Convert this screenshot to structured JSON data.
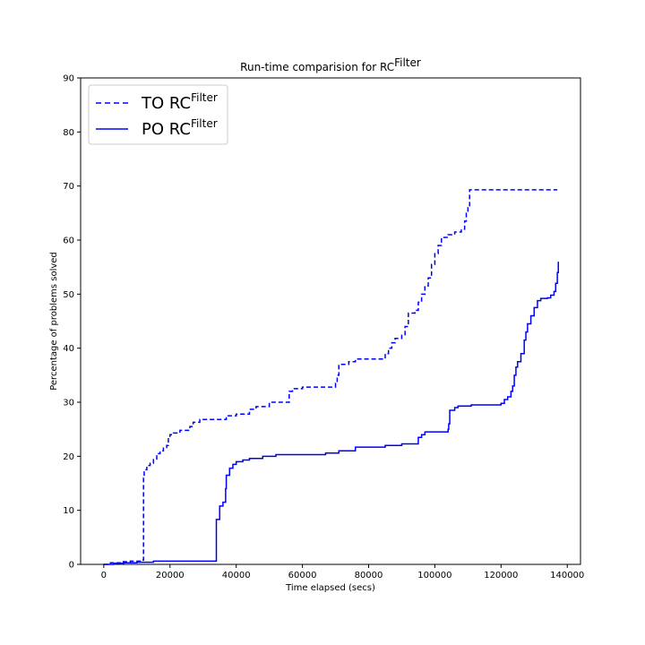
{
  "chart_data": {
    "type": "line",
    "title": "Run-time comparision for RC",
    "title_superscript": "Filter",
    "xlabel": "Time elapsed (secs)",
    "ylabel": "Percentage of problems solved",
    "xlim": [
      -7000,
      144000
    ],
    "ylim": [
      0,
      90
    ],
    "xticks": [
      0,
      20000,
      40000,
      60000,
      80000,
      100000,
      120000,
      140000
    ],
    "yticks": [
      0,
      10,
      20,
      30,
      40,
      50,
      60,
      70,
      80,
      90
    ],
    "grid": false,
    "legend_position": "top-left",
    "series": [
      {
        "name": "TO RC",
        "name_superscript": "Filter",
        "style": "dashed",
        "color": "#0000ff",
        "step": true,
        "points": [
          [
            0,
            0
          ],
          [
            2000,
            0.3
          ],
          [
            5000,
            0.5
          ],
          [
            8000,
            0.6
          ],
          [
            11900,
            0.8
          ],
          [
            12000,
            16
          ],
          [
            12200,
            17.5
          ],
          [
            13000,
            18.3
          ],
          [
            14000,
            18.7
          ],
          [
            15000,
            19.5
          ],
          [
            16000,
            20.5
          ],
          [
            17000,
            21
          ],
          [
            18000,
            21.5
          ],
          [
            19000,
            22
          ],
          [
            19500,
            23.5
          ],
          [
            20000,
            24
          ],
          [
            21000,
            24.3
          ],
          [
            23000,
            24.8
          ],
          [
            26000,
            25.5
          ],
          [
            27000,
            26.3
          ],
          [
            29000,
            26.8
          ],
          [
            37000,
            27.5
          ],
          [
            40000,
            27.8
          ],
          [
            44000,
            28.7
          ],
          [
            46000,
            29.2
          ],
          [
            50000,
            30
          ],
          [
            56000,
            32
          ],
          [
            57000,
            32.5
          ],
          [
            60000,
            32.8
          ],
          [
            70000,
            33.5
          ],
          [
            70500,
            35
          ],
          [
            71000,
            37
          ],
          [
            74000,
            37.5
          ],
          [
            76000,
            38
          ],
          [
            85000,
            39
          ],
          [
            86000,
            40
          ],
          [
            87000,
            41
          ],
          [
            88000,
            41.8
          ],
          [
            90000,
            42.5
          ],
          [
            91000,
            44
          ],
          [
            92000,
            46.5
          ],
          [
            94000,
            47
          ],
          [
            95000,
            48.5
          ],
          [
            96000,
            50
          ],
          [
            97000,
            51.5
          ],
          [
            98000,
            53
          ],
          [
            99000,
            55.5
          ],
          [
            100000,
            57.5
          ],
          [
            101000,
            59
          ],
          [
            102000,
            60.5
          ],
          [
            104000,
            61
          ],
          [
            106000,
            61.5
          ],
          [
            108000,
            62
          ],
          [
            109000,
            63.5
          ],
          [
            109500,
            65
          ],
          [
            110000,
            66
          ],
          [
            110500,
            69.3
          ],
          [
            137000,
            69.3
          ]
        ]
      },
      {
        "name": "PO RC",
        "name_superscript": "Filter",
        "style": "solid",
        "color": "#0000ff",
        "step": true,
        "points": [
          [
            0,
            0
          ],
          [
            3000,
            0.2
          ],
          [
            6000,
            0.3
          ],
          [
            10000,
            0.4
          ],
          [
            15000,
            0.6
          ],
          [
            33500,
            0.6
          ],
          [
            34000,
            8.3
          ],
          [
            35000,
            10.8
          ],
          [
            36000,
            11.5
          ],
          [
            36800,
            14
          ],
          [
            37000,
            16.5
          ],
          [
            38000,
            17.8
          ],
          [
            39000,
            18.5
          ],
          [
            40000,
            19
          ],
          [
            42000,
            19.3
          ],
          [
            44000,
            19.6
          ],
          [
            48000,
            20
          ],
          [
            52000,
            20.3
          ],
          [
            67000,
            20.6
          ],
          [
            71000,
            21
          ],
          [
            76000,
            21.7
          ],
          [
            85000,
            22
          ],
          [
            90000,
            22.3
          ],
          [
            95000,
            23.5
          ],
          [
            96000,
            24
          ],
          [
            97000,
            24.5
          ],
          [
            104000,
            25
          ],
          [
            104200,
            26
          ],
          [
            104500,
            28.5
          ],
          [
            106000,
            29
          ],
          [
            107000,
            29.3
          ],
          [
            111000,
            29.5
          ],
          [
            120000,
            29.8
          ],
          [
            121000,
            30.5
          ],
          [
            122000,
            31
          ],
          [
            123000,
            32
          ],
          [
            123500,
            33
          ],
          [
            124000,
            35
          ],
          [
            124500,
            36.5
          ],
          [
            125000,
            37.5
          ],
          [
            126000,
            39
          ],
          [
            127000,
            41.5
          ],
          [
            127500,
            43
          ],
          [
            128000,
            44.5
          ],
          [
            129000,
            46
          ],
          [
            130000,
            47.5
          ],
          [
            131000,
            48.8
          ],
          [
            132000,
            49.2
          ],
          [
            134000,
            49.3
          ],
          [
            135000,
            49.8
          ],
          [
            136000,
            50.5
          ],
          [
            136500,
            52
          ],
          [
            137000,
            54
          ],
          [
            137300,
            56
          ]
        ]
      }
    ]
  }
}
